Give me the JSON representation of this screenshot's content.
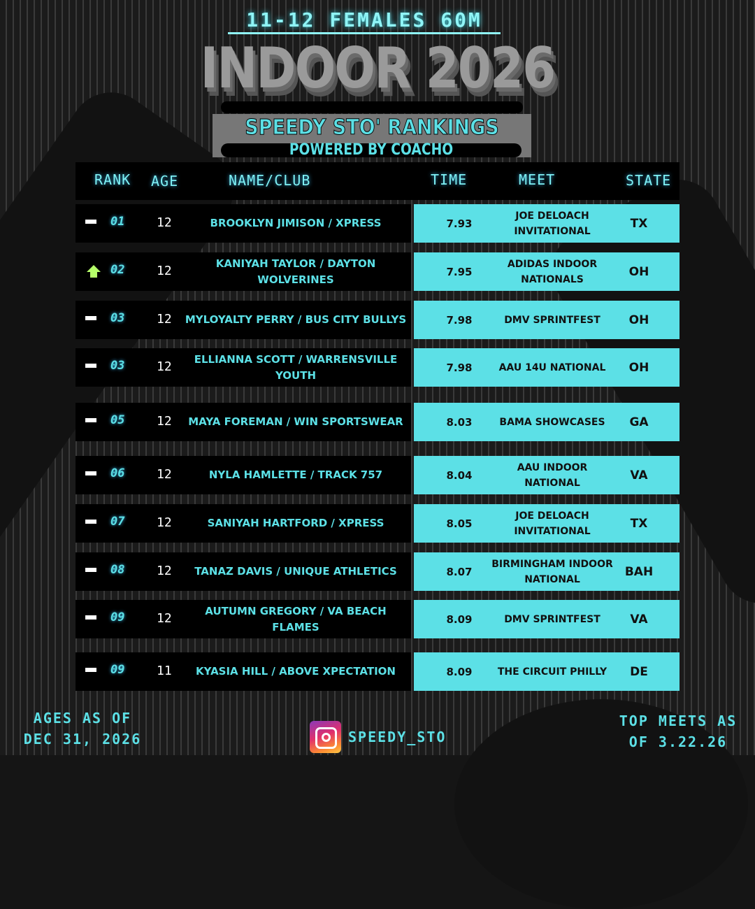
{
  "header": {
    "subtitle": "11-12 FEMALES 60M",
    "title": "INDOOR 2026",
    "rankings": "SPEEDY STO' RANKINGS",
    "powered": "POWERED BY COACHO"
  },
  "columns": {
    "rank": "RANK",
    "age": "AGE",
    "name": "NAME/CLUB",
    "time": "TIME",
    "meet": "MEET",
    "state": "STATE"
  },
  "colors": {
    "accent": "#5ce0e6",
    "up": "#b6ff6a"
  },
  "rows": [
    {
      "trend": "same",
      "rank": "01",
      "age": "12",
      "name": "BROOKLYN JIMISON / XPRESS",
      "time": "7.93",
      "meet": "JOE DELOACH INVITATIONAL",
      "state": "TX"
    },
    {
      "trend": "up",
      "rank": "02",
      "age": "12",
      "name": "KANIYAH TAYLOR / DAYTON WOLVERINES",
      "time": "7.95",
      "meet": "ADIDAS INDOOR NATIONALS",
      "state": "OH"
    },
    {
      "trend": "same",
      "rank": "03",
      "age": "12",
      "name": "MYLOYALTY PERRY / BUS CITY BULLYS",
      "time": "7.98",
      "meet": "DMV SPRINTFEST",
      "state": "OH"
    },
    {
      "trend": "same",
      "rank": "03",
      "age": "12",
      "name": "ELLIANNA SCOTT / WARRENSVILLE YOUTH",
      "time": "7.98",
      "meet": "AAU 14U NATIONAL",
      "state": "OH"
    },
    {
      "trend": "same",
      "rank": "05",
      "age": "12",
      "name": "MAYA FOREMAN / WIN SPORTSWEAR",
      "time": "8.03",
      "meet": "BAMA SHOWCASES",
      "state": "GA"
    },
    {
      "trend": "same",
      "rank": "06",
      "age": "12",
      "name": "NYLA HAMLETTE / TRACK 757",
      "time": "8.04",
      "meet": "AAU INDOOR NATIONAL",
      "state": "VA"
    },
    {
      "trend": "same",
      "rank": "07",
      "age": "12",
      "name": "SANIYAH HARTFORD / XPRESS",
      "time": "8.05",
      "meet": "JOE DELOACH INVITATIONAL",
      "state": "TX"
    },
    {
      "trend": "same",
      "rank": "08",
      "age": "12",
      "name": "TANAZ DAVIS / UNIQUE ATHLETICS",
      "time": "8.07",
      "meet": "BIRMINGHAM INDOOR NATIONAL",
      "state": "BAH"
    },
    {
      "trend": "same",
      "rank": "09",
      "age": "12",
      "name": "AUTUMN GREGORY / VA BEACH FLAMES",
      "time": "8.09",
      "meet": "DMV SPRINTFEST",
      "state": "VA"
    },
    {
      "trend": "same",
      "rank": "09",
      "age": "11",
      "name": "KYASIA HILL / ABOVE XPECTATION",
      "time": "8.09",
      "meet": "THE CIRCUIT PHILLY",
      "state": "DE"
    }
  ],
  "footer": {
    "ages_line1": "AGES AS OF",
    "ages_line2": "DEC 31, 2026",
    "handle": "SPEEDY_STO",
    "meets_line1": "TOP MEETS AS",
    "meets_line2": "OF 3.22.26",
    "social_icon": "instagram-icon"
  }
}
